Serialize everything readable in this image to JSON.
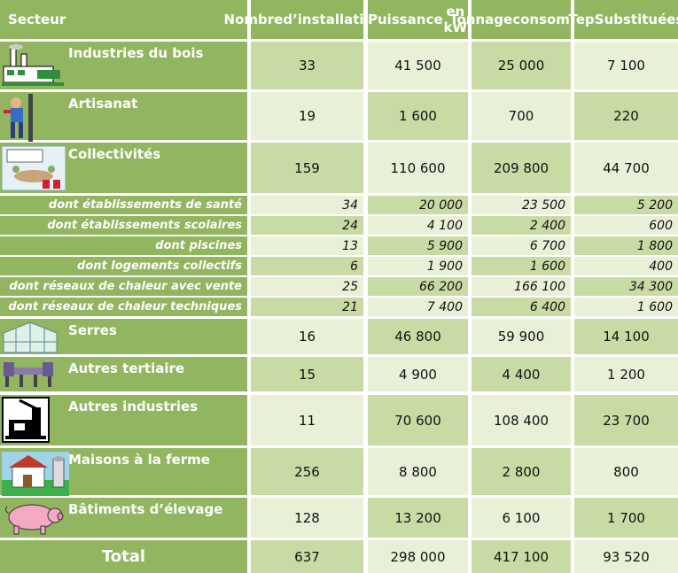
{
  "headers": {
    "secteur": "Secteur",
    "installations": [
      "Nombre",
      "d’installations"
    ],
    "puissance": [
      "Puissance",
      "en kW"
    ],
    "tonnage": [
      "Tonnage",
      "consommé"
    ],
    "tep": [
      "Tep",
      "Substituées"
    ]
  },
  "rows": [
    {
      "label": "Industries du bois",
      "icon": "sawmill-icon",
      "installations": "33",
      "puissance": "41 500",
      "tonnage": "25 000",
      "tep": "7 100"
    },
    {
      "label": "Artisanat",
      "icon": "craftsman-icon",
      "installations": "19",
      "puissance": "1 600",
      "tonnage": "700",
      "tep": "220"
    },
    {
      "label": "Collectivités",
      "icon": "meeting-room-icon",
      "installations": "159",
      "puissance": "110 600",
      "tonnage": "209 800",
      "tep": "44 700"
    },
    {
      "label": "dont établissements de santé",
      "installations": "34",
      "puissance": "20 000",
      "tonnage": "23 500",
      "tep": "5 200"
    },
    {
      "label": "dont établissements scolaires",
      "installations": "24",
      "puissance": "4 100",
      "tonnage": "2 400",
      "tep": "600"
    },
    {
      "label": "dont piscines",
      "installations": "13",
      "puissance": "5 900",
      "tonnage": "6 700",
      "tep": "1 800"
    },
    {
      "label": "dont logements collectifs",
      "installations": "6",
      "puissance": "1 900",
      "tonnage": "1 600",
      "tep": "400"
    },
    {
      "label": "dont réseaux de chaleur avec vente",
      "installations": "25",
      "puissance": "66 200",
      "tonnage": "166 100",
      "tep": "34 300"
    },
    {
      "label": "dont réseaux de chaleur techniques",
      "installations": "21",
      "puissance": "7 400",
      "tonnage": "6 400",
      "tep": "1 600"
    },
    {
      "label": "Serres",
      "icon": "greenhouse-icon",
      "installations": "16",
      "puissance": "46 800",
      "tonnage": "59 900",
      "tep": "14 100"
    },
    {
      "label": "Autres tertiaire",
      "icon": "office-chairs-icon",
      "installations": "15",
      "puissance": "4 900",
      "tonnage": "4 400",
      "tep": "1 200"
    },
    {
      "label": "Autres industries",
      "icon": "factory-machine-icon",
      "installations": "11",
      "puissance": "70 600",
      "tonnage": "108 400",
      "tep": "23 700"
    },
    {
      "label": "Maisons à la ferme",
      "icon": "farm-house-icon",
      "installations": "256",
      "puissance": "8 800",
      "tonnage": "2 800",
      "tep": "800"
    },
    {
      "label": "Bâtiments d’élevage",
      "icon": "pig-icon",
      "installations": "128",
      "puissance": "13 200",
      "tonnage": "6 100",
      "tep": "1 700"
    }
  ],
  "total": {
    "label": "Total",
    "installations": "637",
    "puissance": "298 000",
    "tonnage": "417 100",
    "tep": "93 520"
  },
  "colors": {
    "header": "#92b560",
    "cell_dark": "#c9dba4",
    "cell_light": "#e9f0d8",
    "gap": "#ffffff"
  }
}
